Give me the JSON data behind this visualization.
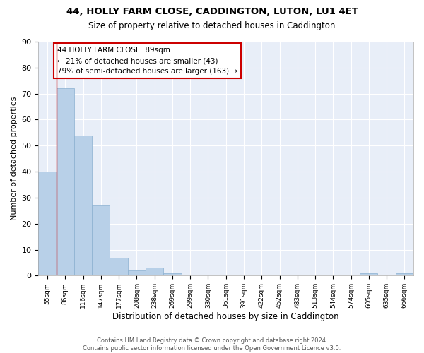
{
  "title1": "44, HOLLY FARM CLOSE, CADDINGTON, LUTON, LU1 4ET",
  "title2": "Size of property relative to detached houses in Caddington",
  "xlabel": "Distribution of detached houses by size in Caddington",
  "ylabel": "Number of detached properties",
  "categories": [
    "55sqm",
    "86sqm",
    "116sqm",
    "147sqm",
    "177sqm",
    "208sqm",
    "238sqm",
    "269sqm",
    "299sqm",
    "330sqm",
    "361sqm",
    "391sqm",
    "422sqm",
    "452sqm",
    "483sqm",
    "513sqm",
    "544sqm",
    "574sqm",
    "605sqm",
    "635sqm",
    "666sqm"
  ],
  "values": [
    40,
    72,
    54,
    27,
    7,
    2,
    3,
    1,
    0,
    0,
    0,
    0,
    0,
    0,
    0,
    0,
    0,
    0,
    1,
    0,
    1
  ],
  "bar_color": "#b8d0e8",
  "bar_edge_color": "#8ab0d0",
  "property_line_x": 0.5,
  "property_line_color": "#cc0000",
  "ylim": [
    0,
    90
  ],
  "yticks": [
    0,
    10,
    20,
    30,
    40,
    50,
    60,
    70,
    80,
    90
  ],
  "annotation_text": "44 HOLLY FARM CLOSE: 89sqm\n← 21% of detached houses are smaller (43)\n79% of semi-detached houses are larger (163) →",
  "annotation_box_color": "#ffffff",
  "annotation_border_color": "#cc0000",
  "footer1": "Contains HM Land Registry data © Crown copyright and database right 2024.",
  "footer2": "Contains public sector information licensed under the Open Government Licence v3.0.",
  "background_color": "#e8eef8",
  "grid_color": "#ffffff"
}
